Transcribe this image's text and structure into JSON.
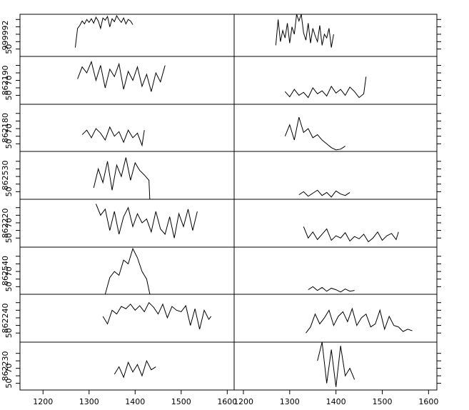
{
  "chart_data": [
    {
      "type": "line",
      "ylabel": "999992",
      "xlim": [
        1150,
        1615
      ],
      "ylim": [
        40,
        97
      ],
      "yticks": [
        50
      ],
      "yminorticks": [
        60,
        70,
        80,
        90
      ],
      "x": [
        1270,
        1275,
        1280,
        1285,
        1290,
        1295,
        1300,
        1305,
        1310,
        1315,
        1320,
        1325,
        1330,
        1335,
        1340,
        1345,
        1350,
        1355,
        1360,
        1365,
        1370,
        1375,
        1380,
        1385,
        1390,
        1395
      ],
      "values": [
        52,
        78,
        82,
        88,
        84,
        90,
        86,
        91,
        85,
        93,
        88,
        78,
        92,
        89,
        94,
        80,
        91,
        87,
        95,
        90,
        86,
        92,
        84,
        90,
        88,
        83
      ]
    },
    {
      "type": "line",
      "xlim": [
        1180,
        1618
      ],
      "ylim": [
        40,
        97
      ],
      "yminorticks": [
        50,
        60,
        70,
        80,
        90
      ],
      "x": [
        1270,
        1275,
        1280,
        1285,
        1290,
        1295,
        1300,
        1305,
        1310,
        1315,
        1320,
        1325,
        1330,
        1335,
        1340,
        1345,
        1350,
        1355,
        1360,
        1365,
        1370,
        1375,
        1380,
        1385,
        1390,
        1395
      ],
      "values": [
        55,
        90,
        60,
        75,
        65,
        85,
        58,
        80,
        70,
        97,
        88,
        97,
        72,
        62,
        85,
        58,
        78,
        68,
        60,
        82,
        55,
        70,
        65,
        78,
        52,
        70
      ]
    },
    {
      "type": "line",
      "ylabel": "862190",
      "xlim": [
        1150,
        1615
      ],
      "ylim": [
        38,
        102
      ],
      "yticks": [
        50,
        70
      ],
      "yminorticks": [
        60,
        80,
        90
      ],
      "x": [
        1275,
        1285,
        1295,
        1305,
        1315,
        1325,
        1335,
        1345,
        1355,
        1365,
        1375,
        1385,
        1395,
        1405,
        1415,
        1425,
        1435,
        1445,
        1455,
        1465
      ],
      "values": [
        72,
        88,
        80,
        95,
        70,
        90,
        60,
        85,
        75,
        92,
        58,
        82,
        70,
        88,
        62,
        78,
        55,
        80,
        68,
        90
      ]
    },
    {
      "type": "line",
      "xlim": [
        1180,
        1618
      ],
      "ylim": [
        38,
        102
      ],
      "yminorticks": [
        50,
        60,
        70,
        80,
        90
      ],
      "x": [
        1290,
        1300,
        1310,
        1320,
        1330,
        1340,
        1350,
        1360,
        1370,
        1380,
        1390,
        1400,
        1410,
        1420,
        1430,
        1440,
        1450,
        1460,
        1465
      ],
      "values": [
        55,
        48,
        58,
        50,
        54,
        47,
        60,
        52,
        56,
        49,
        62,
        53,
        58,
        50,
        61,
        55,
        47,
        52,
        75
      ]
    },
    {
      "type": "line",
      "ylabel": "862180",
      "xlim": [
        1150,
        1615
      ],
      "ylim": [
        40,
        102
      ],
      "yticks": [
        50,
        70
      ],
      "yminorticks": [
        60,
        80,
        90
      ],
      "x": [
        1285,
        1295,
        1305,
        1315,
        1325,
        1335,
        1345,
        1355,
        1365,
        1375,
        1385,
        1395,
        1405,
        1415,
        1420
      ],
      "values": [
        62,
        68,
        58,
        70,
        64,
        55,
        72,
        60,
        66,
        52,
        68,
        58,
        64,
        48,
        68
      ]
    },
    {
      "type": "line",
      "xlim": [
        1180,
        1618
      ],
      "ylim": [
        40,
        102
      ],
      "yminorticks": [
        50,
        60,
        70,
        80,
        90
      ],
      "x": [
        1290,
        1300,
        1310,
        1320,
        1330,
        1340,
        1350,
        1360,
        1370,
        1380,
        1390,
        1400,
        1410,
        1420
      ],
      "values": [
        60,
        75,
        55,
        85,
        65,
        70,
        58,
        62,
        55,
        50,
        45,
        42,
        43,
        47
      ]
    },
    {
      "type": "line",
      "ylabel": "862530",
      "xlim": [
        1150,
        1615
      ],
      "ylim": [
        40,
        103
      ],
      "yticks": [
        50
      ],
      "yminorticks": [
        60,
        70,
        80,
        90
      ],
      "x": [
        1310,
        1320,
        1330,
        1340,
        1350,
        1360,
        1370,
        1380,
        1390,
        1400,
        1410,
        1420,
        1430,
        1432
      ],
      "values": [
        55,
        80,
        62,
        90,
        52,
        85,
        70,
        95,
        65,
        88,
        78,
        72,
        65,
        38
      ]
    },
    {
      "type": "line",
      "xlim": [
        1180,
        1618
      ],
      "ylim": [
        40,
        103
      ],
      "yminorticks": [
        50,
        60,
        70,
        80,
        90
      ],
      "x": [
        1320,
        1330,
        1340,
        1350,
        1360,
        1370,
        1380,
        1390,
        1400,
        1410,
        1420,
        1430
      ],
      "values": [
        46,
        50,
        44,
        48,
        52,
        45,
        49,
        43,
        51,
        47,
        45,
        49
      ]
    },
    {
      "type": "line",
      "ylabel": "862220",
      "xlim": [
        1150,
        1615
      ],
      "ylim": [
        38,
        101
      ],
      "yticks": [
        50,
        70
      ],
      "yminorticks": [
        60,
        80,
        90
      ],
      "x": [
        1315,
        1325,
        1335,
        1345,
        1355,
        1365,
        1375,
        1385,
        1395,
        1405,
        1415,
        1425,
        1435,
        1445,
        1455,
        1465,
        1475,
        1485,
        1495,
        1505,
        1515,
        1525,
        1535
      ],
      "values": [
        95,
        80,
        88,
        60,
        85,
        55,
        78,
        90,
        65,
        82,
        70,
        75,
        58,
        85,
        62,
        55,
        78,
        50,
        82,
        65,
        88,
        60,
        85
      ]
    },
    {
      "type": "line",
      "xlim": [
        1180,
        1618
      ],
      "ylim": [
        38,
        101
      ],
      "yminorticks": [
        50,
        60,
        70,
        80,
        90
      ],
      "x": [
        1330,
        1340,
        1350,
        1360,
        1370,
        1380,
        1390,
        1400,
        1410,
        1420,
        1430,
        1440,
        1450,
        1460,
        1470,
        1480,
        1490,
        1500,
        1510,
        1520,
        1530,
        1535
      ],
      "values": [
        65,
        50,
        58,
        48,
        55,
        62,
        47,
        53,
        50,
        57,
        46,
        52,
        49,
        55,
        45,
        50,
        58,
        47,
        53,
        56,
        48,
        58
      ]
    },
    {
      "type": "line",
      "ylabel": "862540",
      "xlim": [
        1150,
        1615
      ],
      "ylim": [
        40,
        102
      ],
      "yticks": [
        50,
        70
      ],
      "yminorticks": [
        60,
        80,
        90
      ],
      "x": [
        1335,
        1345,
        1355,
        1365,
        1375,
        1385,
        1395,
        1405,
        1415,
        1425,
        1432
      ],
      "values": [
        40,
        62,
        70,
        65,
        85,
        80,
        100,
        88,
        70,
        60,
        40
      ]
    },
    {
      "type": "line",
      "xlim": [
        1180,
        1618
      ],
      "ylim": [
        40,
        102
      ],
      "yminorticks": [
        50,
        60,
        70,
        80,
        90
      ],
      "x": [
        1340,
        1350,
        1360,
        1370,
        1380,
        1390,
        1400,
        1410,
        1420,
        1430,
        1440
      ],
      "values": [
        46,
        50,
        45,
        49,
        44,
        48,
        46,
        43,
        47,
        44,
        45
      ]
    },
    {
      "type": "line",
      "ylabel": "862240",
      "xlim": [
        1150,
        1615
      ],
      "ylim": [
        38,
        101
      ],
      "yticks": [
        50
      ],
      "yminorticks": [
        60,
        70,
        80,
        90
      ],
      "x": [
        1330,
        1340,
        1350,
        1360,
        1370,
        1380,
        1390,
        1400,
        1410,
        1420,
        1430,
        1440,
        1450,
        1460,
        1470,
        1480,
        1490,
        1500,
        1510,
        1520,
        1530,
        1540,
        1550,
        1560,
        1565
      ],
      "values": [
        72,
        62,
        80,
        75,
        85,
        82,
        88,
        80,
        86,
        78,
        90,
        84,
        75,
        88,
        70,
        85,
        80,
        78,
        86,
        60,
        82,
        55,
        80,
        68,
        72
      ]
    },
    {
      "type": "line",
      "xlim": [
        1180,
        1618
      ],
      "ylim": [
        38,
        101
      ],
      "yminorticks": [
        50,
        60,
        70,
        80,
        90
      ],
      "x": [
        1335,
        1345,
        1355,
        1365,
        1375,
        1385,
        1395,
        1405,
        1415,
        1425,
        1435,
        1445,
        1455,
        1465,
        1475,
        1485,
        1495,
        1505,
        1515,
        1525,
        1535,
        1545,
        1555,
        1565
      ],
      "values": [
        50,
        58,
        75,
        62,
        70,
        80,
        60,
        72,
        78,
        65,
        82,
        60,
        70,
        75,
        58,
        62,
        80,
        55,
        72,
        60,
        58,
        52,
        55,
        53
      ]
    },
    {
      "type": "line",
      "ylabel": "862230",
      "xlim": [
        1150,
        1615
      ],
      "ylim": [
        41,
        105
      ],
      "yticks": [
        50,
        70
      ],
      "yminorticks": [
        60,
        80,
        90
      ],
      "xticks": [
        1200,
        1300,
        1400,
        1500,
        1600
      ],
      "x": [
        1355,
        1365,
        1375,
        1385,
        1395,
        1405,
        1415,
        1425,
        1435,
        1445
      ],
      "values": [
        62,
        72,
        58,
        78,
        65,
        75,
        60,
        80,
        68,
        72
      ]
    },
    {
      "type": "line",
      "xlim": [
        1180,
        1618
      ],
      "ylim": [
        41,
        105
      ],
      "yminorticks": [
        50,
        60,
        70,
        80,
        90
      ],
      "xticks": [
        1200,
        1300,
        1400,
        1500,
        1600
      ],
      "x": [
        1360,
        1370,
        1380,
        1390,
        1400,
        1410,
        1420,
        1430,
        1440
      ],
      "values": [
        80,
        105,
        50,
        95,
        45,
        100,
        60,
        70,
        55
      ]
    }
  ]
}
